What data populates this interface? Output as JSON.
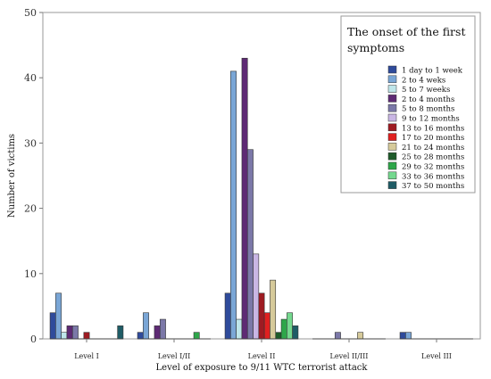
{
  "chart_data": {
    "type": "bar",
    "xlabel": "Level of exposure to 9/11 WTC terrorist attack",
    "ylabel": "Number of victims",
    "ylim": [
      0,
      50
    ],
    "yticks": [
      0,
      10,
      20,
      30,
      40,
      50
    ],
    "grid": false,
    "legend_position": "top-right",
    "legend_title": [
      "The onset of the first",
      "symptoms"
    ],
    "categories": [
      "Level I",
      "Level I/II",
      "Level II",
      "Level II/III",
      "Level III"
    ],
    "series": [
      {
        "name": "1 day to 1 week",
        "color": "#2f4b9b",
        "values": [
          4,
          1,
          7,
          0,
          1
        ]
      },
      {
        "name": "2 to 4 weks",
        "color": "#7aa6d6",
        "values": [
          7,
          4,
          41,
          0,
          1
        ]
      },
      {
        "name": "5 to 7 weeks",
        "color": "#bfe6ea",
        "values": [
          1,
          0,
          3,
          0,
          0
        ]
      },
      {
        "name": "2 to 4 months",
        "color": "#5e2a74",
        "values": [
          2,
          2,
          43,
          0,
          0
        ]
      },
      {
        "name": "5 to 8 months",
        "color": "#7b78a8",
        "values": [
          2,
          3,
          29,
          1,
          0
        ]
      },
      {
        "name": "9 to 12 months",
        "color": "#c9b6e4",
        "values": [
          0,
          0,
          13,
          0,
          0
        ]
      },
      {
        "name": "13 to 16 months",
        "color": "#9e1b22",
        "values": [
          1,
          0,
          7,
          0,
          0
        ]
      },
      {
        "name": "17 to 20 months",
        "color": "#e02020",
        "values": [
          0,
          0,
          4,
          0,
          0
        ]
      },
      {
        "name": "21 to 24 months",
        "color": "#d6ca9a",
        "values": [
          0,
          0,
          9,
          1,
          0
        ]
      },
      {
        "name": "25 to 28 months",
        "color": "#1e5b2a",
        "values": [
          0,
          0,
          1,
          0,
          0
        ]
      },
      {
        "name": "29 to 32 months",
        "color": "#2ea64a",
        "values": [
          0,
          1,
          3,
          0,
          0
        ]
      },
      {
        "name": "33 to 36 months",
        "color": "#74d88e",
        "values": [
          0,
          0,
          4,
          0,
          0
        ]
      },
      {
        "name": "37 to 50 months",
        "color": "#1f5c66",
        "values": [
          2,
          0,
          2,
          0,
          0
        ]
      }
    ]
  }
}
